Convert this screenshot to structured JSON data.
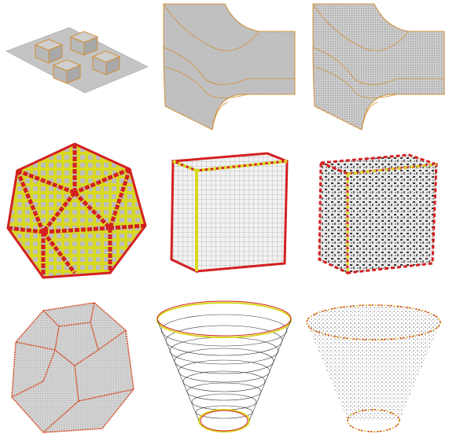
{
  "figure": {
    "panels": [
      {
        "shape": "plate with four cubes"
      },
      {
        "shape": "curved pipe junction"
      },
      {
        "shape": "curved pipe junction"
      },
      {
        "shape": "icosahedron"
      },
      {
        "shape": "cube"
      },
      {
        "shape": "cube"
      },
      {
        "shape": "dodecahedron"
      },
      {
        "shape": "truncated cone"
      },
      {
        "shape": "truncated cone"
      }
    ]
  },
  "colors": {
    "background": "#ffffff",
    "surface_gray": "#c8c8c8",
    "edge_orange": "#e0a040",
    "particle_red": "#d42020",
    "particle_yellow": "#d8d820",
    "mesh_line": "#555555"
  }
}
